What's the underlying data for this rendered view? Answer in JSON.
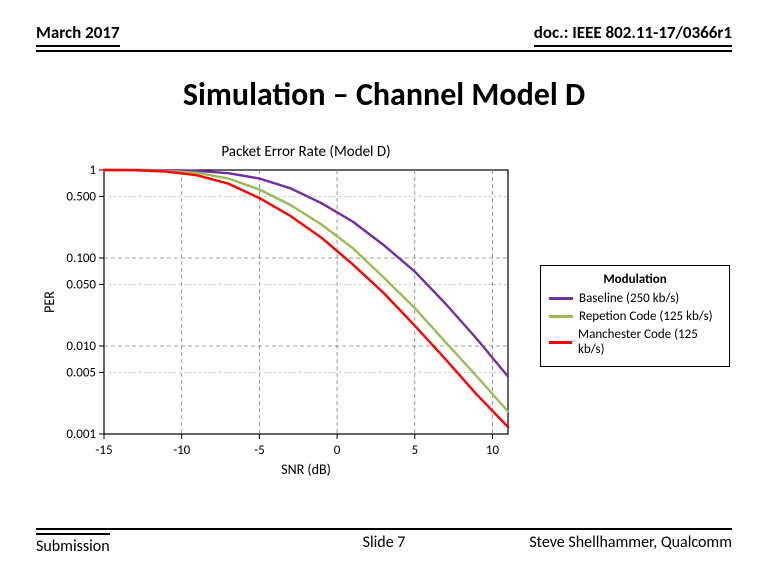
{
  "header": {
    "date": "March 2017",
    "doc": "doc.: IEEE 802.11-17/0366r1"
  },
  "title": "Simulation – Channel Model D",
  "footer": {
    "left": "Submission",
    "center": "Slide 7",
    "right": "Steve Shellhammer, Qualcomm"
  },
  "chart": {
    "type": "line",
    "title": "Packet Error Rate (Model D)",
    "title_fontsize": 15,
    "xlabel": "SNR (dB)",
    "ylabel": "PER",
    "label_fontsize": 14,
    "tick_fontsize": 13,
    "xlim": [
      -15,
      11
    ],
    "ylim": [
      0.001,
      1
    ],
    "scale_y": "log",
    "xtick_values": [
      -15,
      -10,
      -5,
      0,
      5,
      10
    ],
    "xtick_labels": [
      "-15",
      "-10",
      "-5",
      "0",
      "5",
      "10"
    ],
    "ytick_values": [
      0.001,
      0.005,
      0.01,
      0.05,
      0.1,
      0.5,
      1
    ],
    "ytick_labels": [
      "0.001",
      "0.005",
      "0.010",
      "0.050",
      "0.100",
      "0.500",
      "1"
    ],
    "grid_major_x": [
      -15,
      -10,
      -5,
      0,
      5,
      10
    ],
    "grid_major_y": [
      0.001,
      0.01,
      0.1,
      1
    ],
    "grid_minor_y": [
      0.005,
      0.05,
      0.5
    ],
    "background_color": "#ffffff",
    "axis_color": "#000000",
    "grid_major_color": "#808080",
    "grid_minor_color": "#b0b0b0",
    "grid_major_dash": "4,3",
    "grid_minor_dash": "2,3",
    "line_width": 2.4,
    "series": [
      {
        "name": "Baseline (250 kb/s)",
        "color": "#7030a0",
        "x": [
          -15,
          -13,
          -11,
          -9,
          -7,
          -5,
          -3,
          -1,
          1,
          3,
          5,
          7,
          9,
          11
        ],
        "y": [
          1.0,
          1.0,
          0.995,
          0.98,
          0.92,
          0.8,
          0.62,
          0.42,
          0.26,
          0.14,
          0.07,
          0.03,
          0.012,
          0.0045
        ]
      },
      {
        "name": "Repetion Code (125 kb/s)",
        "color": "#9bbb59",
        "x": [
          -15,
          -13,
          -11,
          -9,
          -7,
          -5,
          -3,
          -1,
          1,
          3,
          5,
          7,
          9,
          11
        ],
        "y": [
          1.0,
          1.0,
          0.98,
          0.93,
          0.8,
          0.6,
          0.4,
          0.24,
          0.13,
          0.06,
          0.027,
          0.011,
          0.0045,
          0.0018
        ]
      },
      {
        "name": "Manchester Code (125 kb/s)",
        "color": "#ff0000",
        "x": [
          -15,
          -13,
          -11,
          -9,
          -7,
          -5,
          -3,
          -1,
          1,
          3,
          5,
          7,
          9,
          11
        ],
        "y": [
          1.0,
          0.995,
          0.96,
          0.87,
          0.7,
          0.48,
          0.3,
          0.17,
          0.085,
          0.04,
          0.017,
          0.007,
          0.0028,
          0.0012
        ]
      }
    ]
  },
  "legend": {
    "title": "Modulation",
    "items": [
      {
        "label": "Baseline (250 kb/s)",
        "color": "#7030a0"
      },
      {
        "label": "Repetion Code (125 kb/s)",
        "color": "#9bbb59"
      },
      {
        "label": "Manchester Code (125 kb/s)",
        "color": "#ff0000"
      }
    ]
  }
}
